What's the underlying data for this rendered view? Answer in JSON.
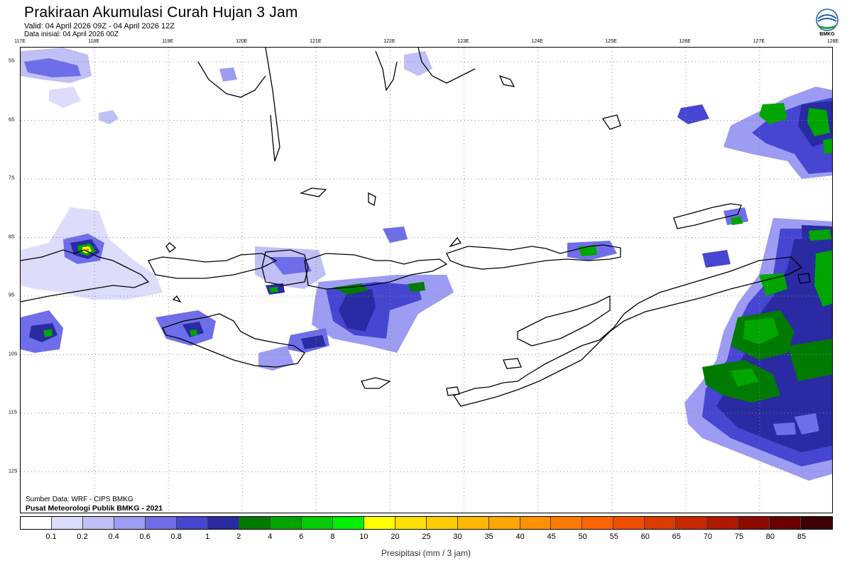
{
  "header": {
    "title": "Prakiraan Akumulasi Curah Hujan 3 Jam",
    "valid": "Valid: 04 April 2026 09Z - 04 April 2026 12Z",
    "initial": "Data inisial: 04 April 2026 00Z",
    "logo_text": "BMKG"
  },
  "map": {
    "lon_labels": [
      "117E",
      "118E",
      "119E",
      "120E",
      "121E",
      "122E",
      "123E",
      "124E",
      "125E",
      "126E",
      "127E",
      "128E"
    ],
    "lat_labels": [
      "5S",
      "6S",
      "7S",
      "8S",
      "9S",
      "10S",
      "11S",
      "12S"
    ],
    "lon_range": [
      117,
      128
    ],
    "lat_range": [
      -4.8,
      -12.7
    ],
    "gridlines": "dotted",
    "credits": {
      "source": "Sumber Data: WRF - CIPS BMKG",
      "organization": "Pusat Meteorologi Publik BMKG - 2021"
    }
  },
  "legend": {
    "title": "Presipitasi (mm / 3 jam)",
    "ticks": [
      "0.1",
      "0.2",
      "0.4",
      "0.6",
      "0.8",
      "1",
      "2",
      "4",
      "6",
      "8",
      "10",
      "20",
      "25",
      "30",
      "35",
      "40",
      "45",
      "50",
      "55",
      "60",
      "65",
      "70",
      "75",
      "80",
      "85"
    ],
    "colors": [
      "#ffffff",
      "#dcdcfb",
      "#c0c0f7",
      "#9c9cf2",
      "#6e6eea",
      "#4646d2",
      "#2a2aa3",
      "#007a00",
      "#00a500",
      "#00cc00",
      "#00f000",
      "#ffff00",
      "#ffe000",
      "#ffcc00",
      "#ffb800",
      "#ffa500",
      "#ff9000",
      "#ff7a00",
      "#ff6400",
      "#f04e00",
      "#dc3a00",
      "#c82800",
      "#b01800",
      "#8e0a00",
      "#6a0000",
      "#3e0000"
    ]
  }
}
